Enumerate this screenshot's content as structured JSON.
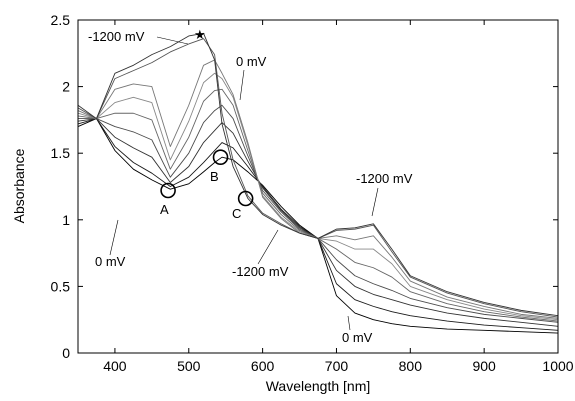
{
  "chart_data": {
    "type": "line",
    "title": "",
    "xlabel": "Wavelength [nm]",
    "ylabel": "Absorbance",
    "xlim": [
      350,
      1000
    ],
    "ylim": [
      0,
      2.5
    ],
    "xticks": [
      400,
      500,
      600,
      700,
      800,
      900,
      1000
    ],
    "yticks": [
      0,
      0.5,
      1,
      1.5,
      2,
      2.5
    ],
    "grid": false,
    "legend": "none",
    "annotations": {
      "top_neg": "-1200 mV",
      "top_zero": "0 mV",
      "left_zero": "0 mV",
      "mid_neg": "-1200 mV",
      "right_neg": "-1200  mV",
      "bottom_zero": "0 mV",
      "point_a": "A",
      "point_b": "B",
      "point_c": "C",
      "star": "★"
    },
    "isosbestic_points": [
      {
        "label": "A",
        "x": 472,
        "y": 1.22
      },
      {
        "label": "B",
        "x": 543,
        "y": 1.47
      },
      {
        "label": "C",
        "x": 577,
        "y": 1.16
      }
    ],
    "x": [
      350,
      375,
      400,
      425,
      450,
      475,
      500,
      520,
      535,
      545,
      560,
      580,
      600,
      625,
      650,
      675,
      700,
      725,
      750,
      775,
      800,
      850,
      900,
      950,
      1000
    ],
    "series": [
      {
        "color": "#000000",
        "values": [
          1.7,
          1.76,
          1.52,
          1.38,
          1.3,
          1.23,
          1.27,
          1.36,
          1.43,
          1.47,
          1.45,
          1.36,
          1.26,
          1.1,
          0.96,
          0.86,
          0.43,
          0.3,
          0.25,
          0.22,
          0.2,
          0.18,
          0.17,
          0.16,
          0.15
        ]
      },
      {
        "color": "#1a1a1a",
        "values": [
          1.72,
          1.76,
          1.55,
          1.43,
          1.35,
          1.25,
          1.32,
          1.43,
          1.52,
          1.58,
          1.54,
          1.4,
          1.25,
          1.08,
          0.95,
          0.86,
          0.52,
          0.4,
          0.35,
          0.31,
          0.28,
          0.24,
          0.21,
          0.19,
          0.17
        ]
      },
      {
        "color": "#333333",
        "values": [
          1.74,
          1.76,
          1.62,
          1.54,
          1.47,
          1.28,
          1.4,
          1.58,
          1.67,
          1.73,
          1.65,
          1.44,
          1.24,
          1.07,
          0.94,
          0.86,
          0.62,
          0.5,
          0.44,
          0.4,
          0.36,
          0.3,
          0.26,
          0.23,
          0.2
        ]
      },
      {
        "color": "#4d4d4d",
        "values": [
          1.76,
          1.76,
          1.7,
          1.66,
          1.6,
          1.32,
          1.5,
          1.73,
          1.82,
          1.86,
          1.76,
          1.48,
          1.22,
          1.06,
          0.93,
          0.86,
          0.7,
          0.58,
          0.52,
          0.47,
          0.41,
          0.34,
          0.29,
          0.26,
          0.23
        ]
      },
      {
        "color": "#666666",
        "values": [
          1.78,
          1.76,
          1.8,
          1.8,
          1.75,
          1.38,
          1.62,
          1.89,
          1.97,
          1.98,
          1.86,
          1.52,
          1.2,
          1.04,
          0.92,
          0.86,
          0.78,
          0.68,
          0.64,
          0.57,
          0.46,
          0.37,
          0.31,
          0.27,
          0.24
        ]
      },
      {
        "color": "#888888",
        "values": [
          1.8,
          1.76,
          1.88,
          1.92,
          1.88,
          1.45,
          1.74,
          2.03,
          2.1,
          2.06,
          1.92,
          1.56,
          1.18,
          1.02,
          0.91,
          0.86,
          0.84,
          0.78,
          0.78,
          0.67,
          0.5,
          0.4,
          0.33,
          0.28,
          0.25
        ]
      },
      {
        "color": "#777777",
        "values": [
          1.82,
          1.76,
          1.98,
          2.02,
          2.0,
          1.55,
          1.86,
          2.16,
          2.2,
          2.1,
          1.94,
          1.58,
          1.17,
          1.01,
          0.9,
          0.86,
          0.88,
          0.85,
          0.88,
          0.72,
          0.54,
          0.42,
          0.35,
          0.29,
          0.26
        ]
      },
      {
        "color": "#555555",
        "values": [
          1.84,
          1.76,
          2.06,
          2.12,
          2.18,
          2.26,
          2.32,
          2.36,
          2.24,
          1.8,
          1.45,
          1.18,
          1.05,
          0.97,
          0.9,
          0.86,
          0.92,
          0.93,
          0.96,
          0.76,
          0.57,
          0.45,
          0.37,
          0.31,
          0.27
        ]
      },
      {
        "color": "#333333",
        "values": [
          1.86,
          1.76,
          2.1,
          2.16,
          2.24,
          2.3,
          2.38,
          2.4,
          2.2,
          1.72,
          1.4,
          1.16,
          1.04,
          0.96,
          0.9,
          0.86,
          0.93,
          0.94,
          0.97,
          0.78,
          0.58,
          0.46,
          0.38,
          0.32,
          0.28
        ]
      }
    ]
  }
}
